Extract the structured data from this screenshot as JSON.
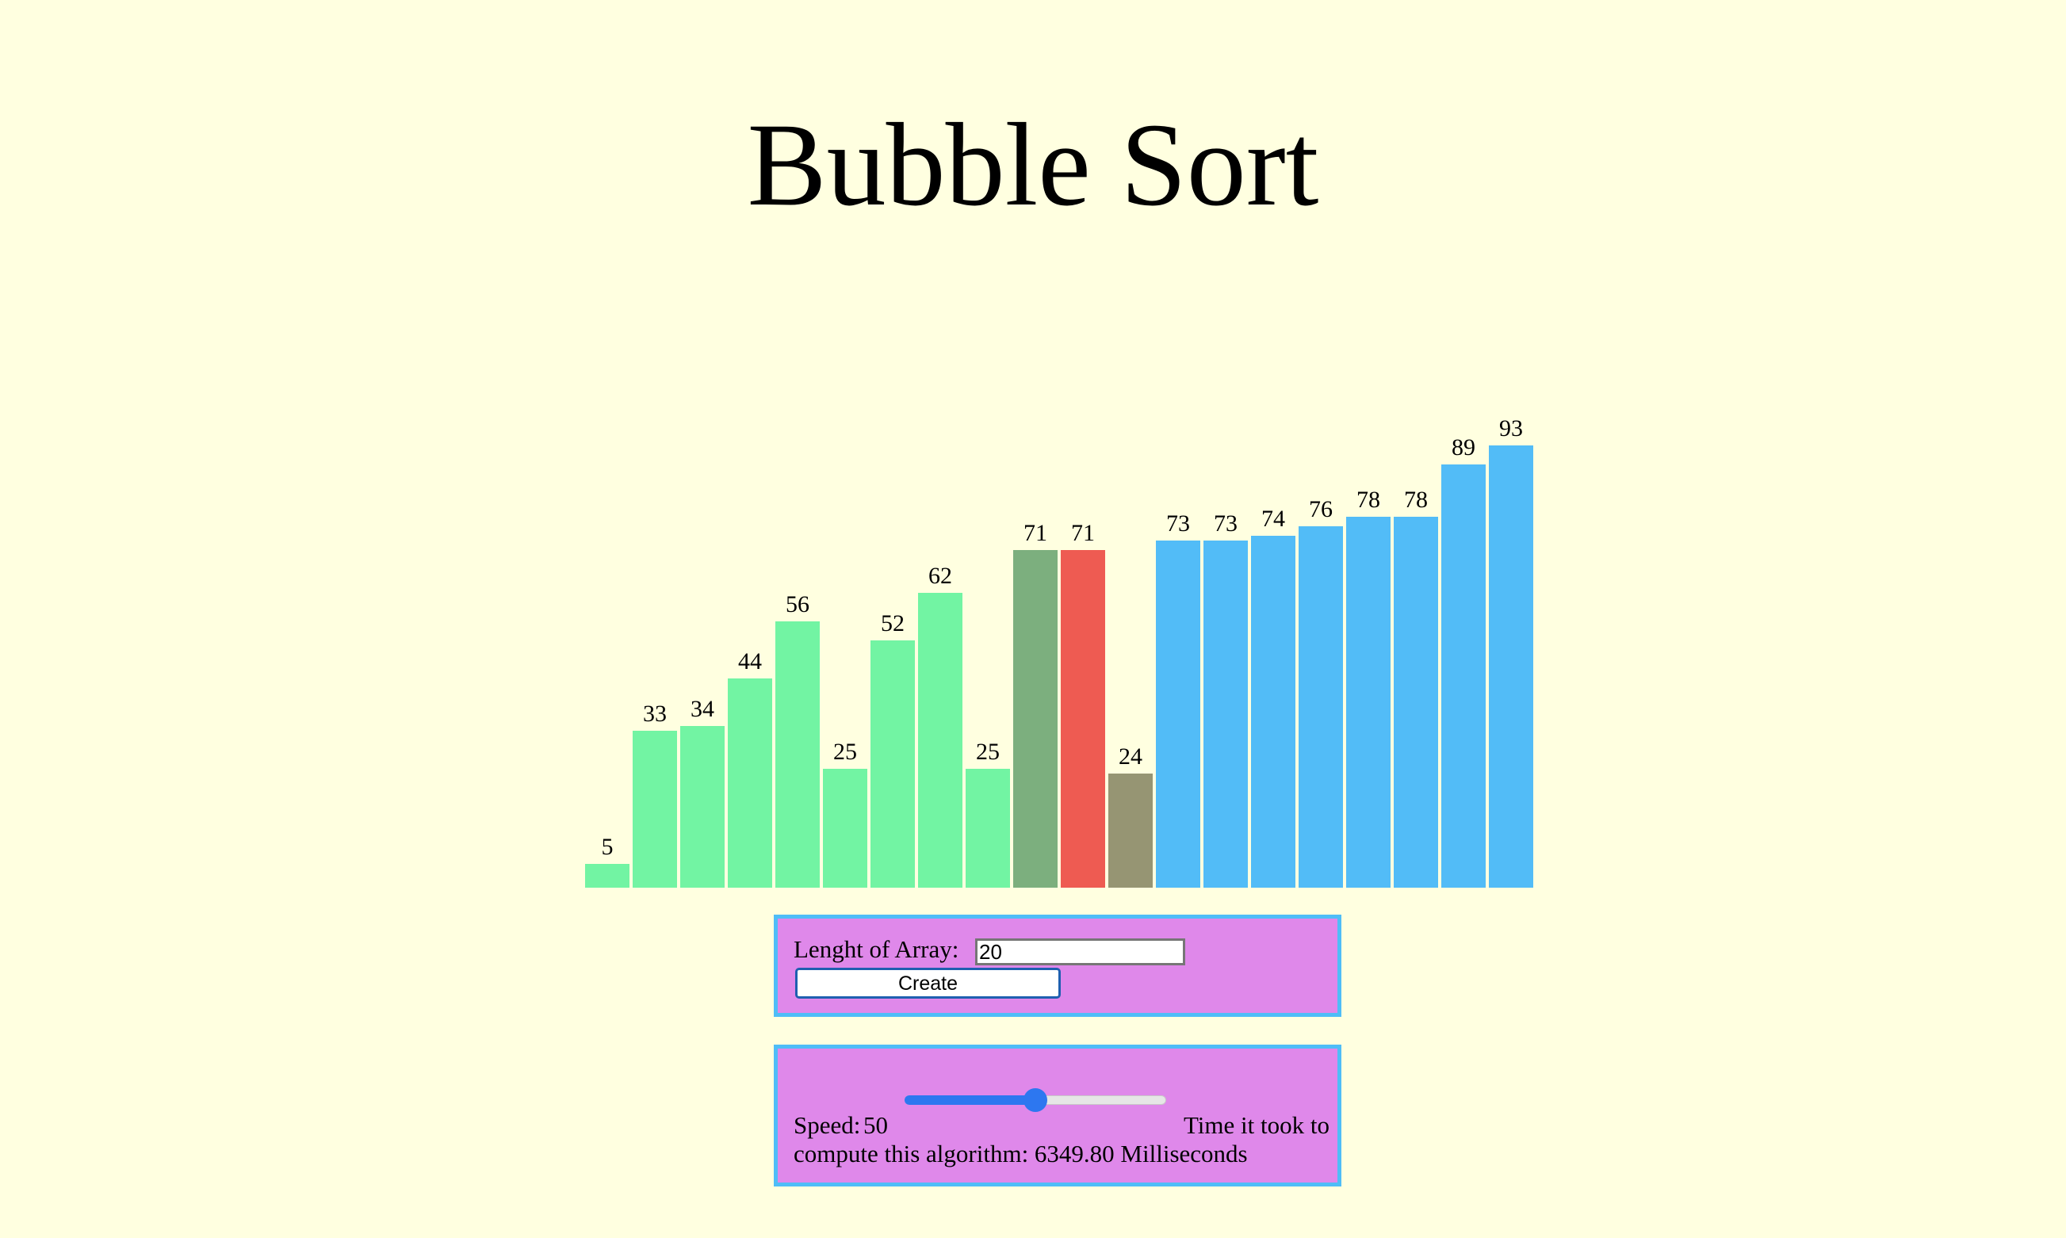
{
  "title": "Bubble Sort",
  "chart_data": {
    "type": "bar",
    "values": [
      5,
      33,
      34,
      44,
      56,
      25,
      52,
      62,
      25,
      71,
      71,
      24,
      73,
      73,
      74,
      76,
      78,
      78,
      89,
      93
    ],
    "states": [
      "unsorted",
      "unsorted",
      "unsorted",
      "unsorted",
      "unsorted",
      "unsorted",
      "unsorted",
      "unsorted",
      "unsorted",
      "compared",
      "swapping",
      "next",
      "sorted",
      "sorted",
      "sorted",
      "sorted",
      "sorted",
      "sorted",
      "sorted",
      "sorted"
    ],
    "colors": {
      "unsorted": "#72f4a3",
      "compared": "#7caf7e",
      "swapping": "#ee5b52",
      "next": "#969573",
      "sorted": "#52bcf7"
    },
    "ylim": [
      0,
      100
    ],
    "grid": false
  },
  "controls": {
    "length_label": "Lenght of Array:",
    "length_value": "20",
    "create_label": "Create"
  },
  "speed": {
    "label": "Speed:",
    "value": "50",
    "slider_value": 50,
    "slider_min": 0,
    "slider_max": 100,
    "time_line1": "Time it took to",
    "time_line2": "compute this algorithm: 6349.80 Milliseconds"
  }
}
